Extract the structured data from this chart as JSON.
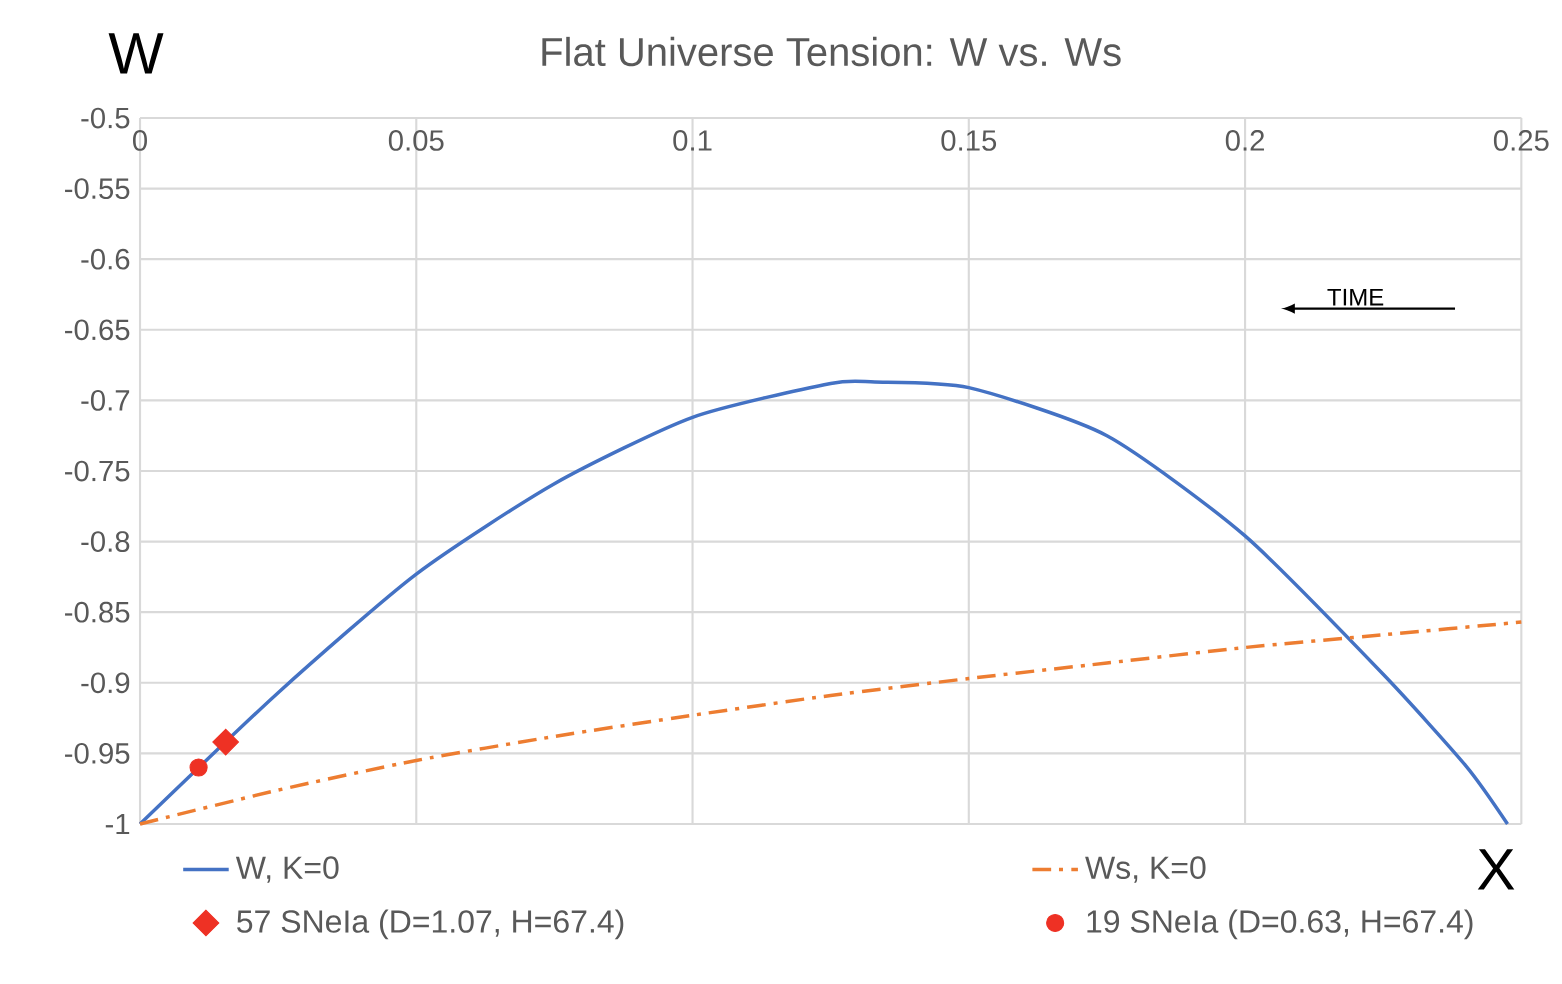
{
  "chart_data": {
    "type": "line",
    "title": "Flat Universe Tension:  W vs. Ws",
    "xlabel": "X",
    "ylabel": "W",
    "xlim": [
      0,
      0.25
    ],
    "ylim": [
      -1,
      -0.5
    ],
    "xticks": [
      0,
      0.05,
      0.1,
      0.15,
      0.2,
      0.25
    ],
    "yticks": [
      -1,
      -0.95,
      -0.9,
      -0.85,
      -0.8,
      -0.75,
      -0.7,
      -0.65,
      -0.6,
      -0.55,
      -0.5
    ],
    "grid": true,
    "legend": "bottom",
    "annotations": [
      "TIME"
    ],
    "series": [
      {
        "name": "W, K=0",
        "color": "#4472c4",
        "line_style": "solid",
        "x": [
          0,
          0.025,
          0.05,
          0.075,
          0.1,
          0.125,
          0.133,
          0.15,
          0.175,
          0.2,
          0.225,
          0.24,
          0.2475
        ],
        "values": [
          -1,
          -0.907,
          -0.823,
          -0.759,
          -0.712,
          -0.688,
          -0.687,
          -0.691,
          -0.725,
          -0.796,
          -0.894,
          -0.959,
          -1
        ]
      },
      {
        "name": "Ws, K=0",
        "color": "#ed7d31",
        "line_style": "dashdot",
        "x": [
          0,
          0.025,
          0.05,
          0.075,
          0.1,
          0.125,
          0.15,
          0.175,
          0.2,
          0.225,
          0.25
        ],
        "values": [
          -1,
          -0.976,
          -0.955,
          -0.938,
          -0.923,
          -0.909,
          -0.897,
          -0.886,
          -0.875,
          -0.866,
          -0.857
        ]
      },
      {
        "name": "57 SNeIa (D=1.07, H=67.4)",
        "type": "scatter",
        "marker": "diamond",
        "color": "#ee3124",
        "x": [
          0.0155
        ],
        "values": [
          -0.942
        ]
      },
      {
        "name": "19 SNeIa (D=0.63, H=67.4)",
        "type": "scatter",
        "marker": "circle",
        "color": "#ee3124",
        "x": [
          0.0106
        ],
        "values": [
          -0.96
        ]
      }
    ]
  }
}
